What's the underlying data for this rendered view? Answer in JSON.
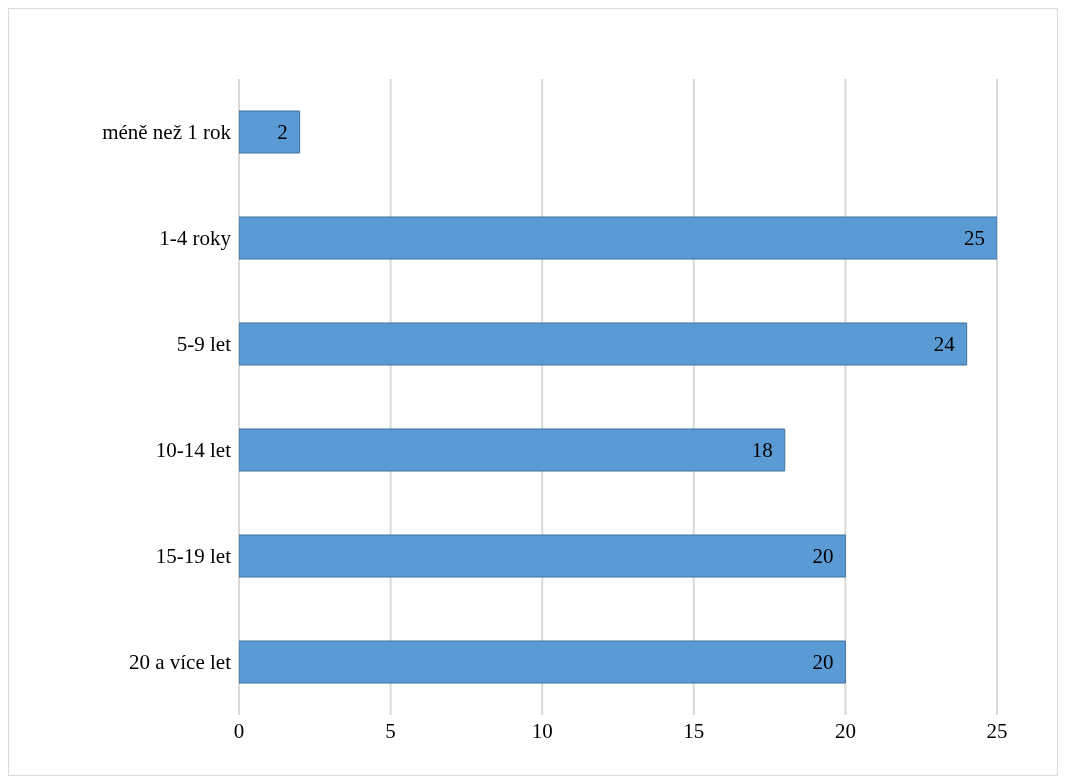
{
  "chart_data": {
    "type": "bar",
    "orientation": "horizontal",
    "categories": [
      "méně než 1 rok",
      "1-4 roky",
      "5-9 let",
      "10-14 let",
      "15-19 let",
      "20 a více let"
    ],
    "values": [
      2,
      25,
      24,
      18,
      20,
      20
    ],
    "color": "#5b9bd5",
    "xlim": [
      0,
      25
    ],
    "xticks": [
      0,
      5,
      10,
      15,
      20,
      25
    ],
    "grid": "x",
    "data_labels": true
  }
}
